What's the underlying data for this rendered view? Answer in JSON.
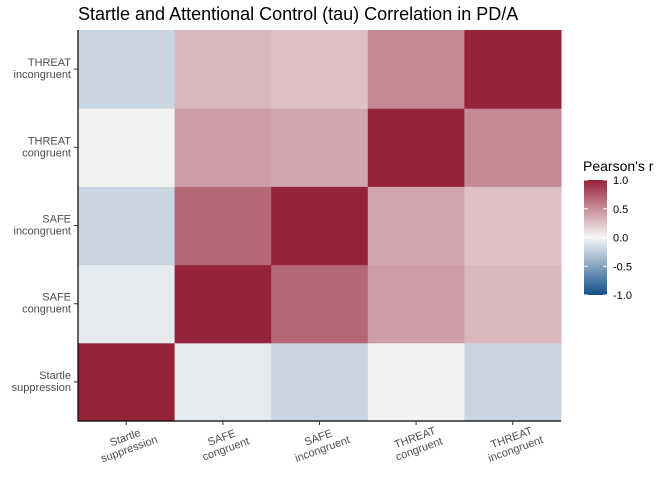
{
  "chart_data": {
    "type": "heatmap",
    "title": "Startle and Attentional Control (tau) Correlation in PD/A",
    "variables": [
      [
        "Startle",
        "suppression"
      ],
      [
        "SAFE",
        "congruent"
      ],
      [
        "SAFE",
        "incongruent"
      ],
      [
        "THREAT",
        "congruent"
      ],
      [
        "THREAT",
        "incongruent"
      ]
    ],
    "matrix": [
      [
        1.0,
        -0.08,
        -0.2,
        0.03,
        -0.2
      ],
      [
        -0.08,
        1.0,
        0.68,
        0.42,
        0.3
      ],
      [
        -0.2,
        0.68,
        1.0,
        0.38,
        0.26
      ],
      [
        0.03,
        0.42,
        0.38,
        1.0,
        0.52
      ],
      [
        -0.2,
        0.3,
        0.26,
        0.52,
        1.0
      ]
    ],
    "legend": {
      "title": "Pearson's r",
      "ticks": [
        "1.0",
        "0.5",
        "0.0",
        "-0.5",
        "-1.0"
      ],
      "limits": [
        -1,
        1
      ],
      "placement": "right",
      "colors": {
        "low": "#134f8a",
        "mid": "#f7f7f7",
        "high": "#96233a"
      }
    },
    "grid": false
  }
}
